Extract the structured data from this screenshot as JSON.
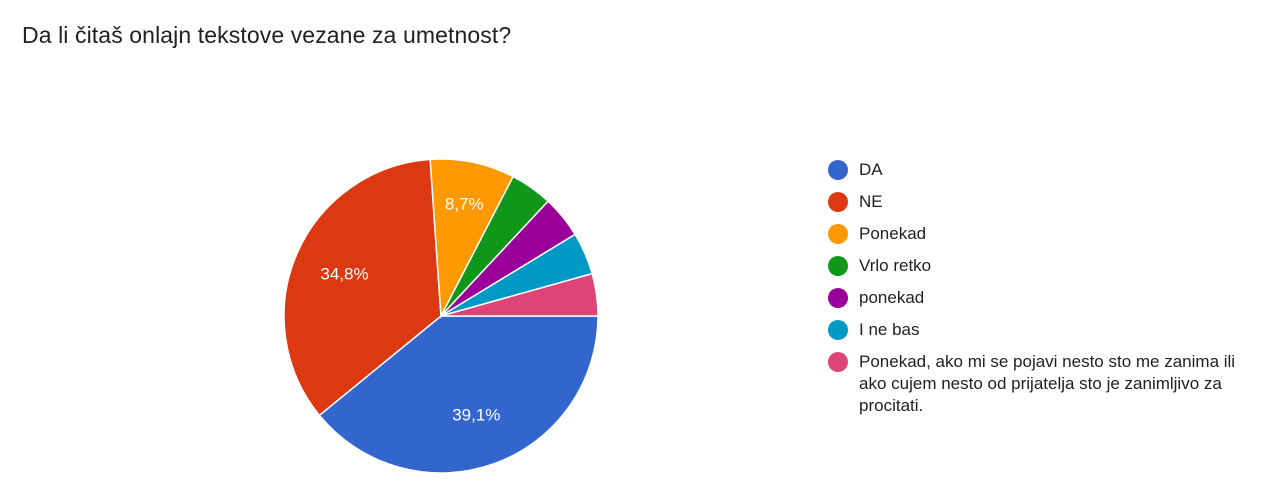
{
  "title": "Da li čitaš onlajn tekstove vezane za umetnost?",
  "chart_data": {
    "type": "pie",
    "title": "Da li čitaš onlajn tekstove vezane za umetnost?",
    "legend_position": "right",
    "slices": [
      {
        "label": "DA",
        "value": 39.1,
        "display": "39,1%",
        "color": "#3366cc"
      },
      {
        "label": "NE",
        "value": 34.8,
        "display": "34,8%",
        "color": "#dc3912"
      },
      {
        "label": "Ponekad",
        "value": 8.7,
        "display": "8,7%",
        "color": "#ff9900"
      },
      {
        "label": "Vrlo retko",
        "value": 4.35,
        "display": "",
        "color": "#109618"
      },
      {
        "label": "ponekad",
        "value": 4.35,
        "display": "",
        "color": "#990099"
      },
      {
        "label": "I ne bas",
        "value": 4.35,
        "display": "",
        "color": "#0099c6"
      },
      {
        "label": "Ponekad, ako mi se pojavi nesto sto me zanima ili ako cujem nesto od prijatelja sto je zanimljivo za procitati.",
        "value": 4.35,
        "display": "",
        "color": "#dd4477"
      }
    ]
  }
}
